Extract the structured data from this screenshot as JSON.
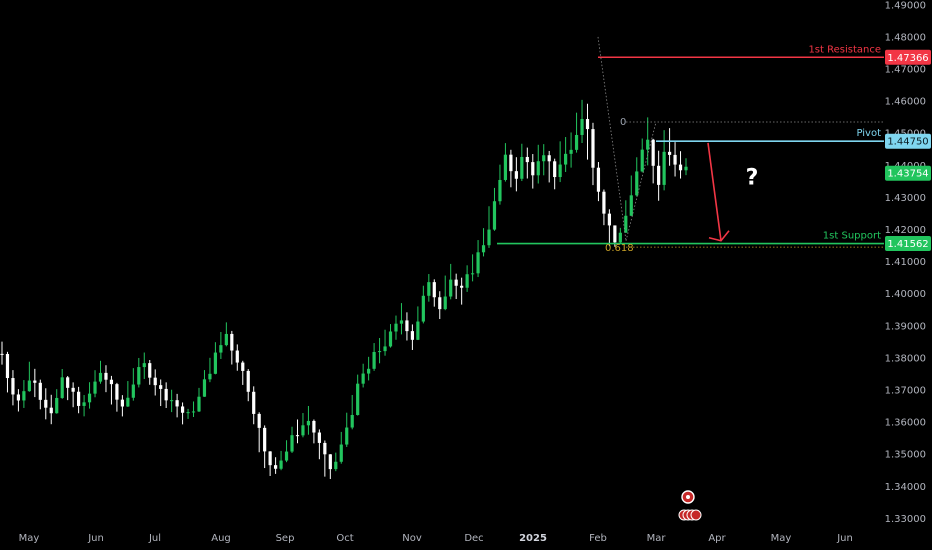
{
  "chart_data": {
    "type": "candlestick",
    "time_labels": [
      "May",
      "Jun",
      "Jul",
      "Aug",
      "Sep",
      "Oct",
      "Nov",
      "Dec",
      "2025",
      "Feb",
      "Mar",
      "Apr",
      "May",
      "Jun"
    ],
    "y_ticks": [
      "1.49000",
      "1.48000",
      "1.47000",
      "1.46000",
      "1.45000",
      "1.44000",
      "1.43000",
      "1.42000",
      "1.41000",
      "1.40000",
      "1.39000",
      "1.38000",
      "1.37000",
      "1.36000",
      "1.35000",
      "1.34000",
      "1.33000"
    ],
    "ylim": [
      1.327,
      1.4915
    ],
    "levels": [
      {
        "name": "1st Resistance",
        "price": 1.47366,
        "label": "1.47366",
        "color": "#f23645"
      },
      {
        "name": "Pivot",
        "price": 1.4475,
        "label": "1.44750",
        "color": "#7fd6f0"
      },
      {
        "name": "1st Support",
        "price": 1.41562,
        "label": "1.41562",
        "color": "#22c55e"
      }
    ],
    "last_price": {
      "price": 1.43754,
      "label": "1.43754",
      "color": "#22c55e"
    },
    "fib": {
      "level0_label": "0",
      "level618_label": "0.618",
      "level0_price": 1.4535,
      "level618_price": 1.4145
    },
    "annotation": "?",
    "price_path": [
      [
        1.3845,
        1.378
      ],
      [
        1.38,
        1.37
      ],
      [
        1.375,
        1.366
      ],
      [
        1.37,
        1.364
      ],
      [
        1.373,
        1.365
      ],
      [
        1.378,
        1.37
      ],
      [
        1.376,
        1.368
      ],
      [
        1.372,
        1.365
      ],
      [
        1.37,
        1.362
      ],
      [
        1.368,
        1.36
      ],
      [
        1.37,
        1.364
      ],
      [
        1.376,
        1.368
      ],
      [
        1.374,
        1.367
      ],
      [
        1.372,
        1.365
      ],
      [
        1.37,
        1.363
      ],
      [
        1.368,
        1.362
      ],
      [
        1.372,
        1.365
      ],
      [
        1.376,
        1.368
      ],
      [
        1.379,
        1.372
      ],
      [
        1.377,
        1.37
      ],
      [
        1.374,
        1.366
      ],
      [
        1.37,
        1.364
      ],
      [
        1.368,
        1.362
      ],
      [
        1.372,
        1.365
      ],
      [
        1.376,
        1.369
      ],
      [
        1.379,
        1.372
      ],
      [
        1.381,
        1.374
      ],
      [
        1.379,
        1.372
      ],
      [
        1.376,
        1.369
      ],
      [
        1.373,
        1.366
      ],
      [
        1.372,
        1.365
      ],
      [
        1.37,
        1.364
      ],
      [
        1.368,
        1.362
      ],
      [
        1.366,
        1.36
      ],
      [
        1.364,
        1.361
      ],
      [
        1.366,
        1.362
      ],
      [
        1.37,
        1.365
      ],
      [
        1.376,
        1.368
      ],
      [
        1.38,
        1.373
      ],
      [
        1.384,
        1.377
      ],
      [
        1.388,
        1.38
      ],
      [
        1.391,
        1.384
      ],
      [
        1.388,
        1.379
      ],
      [
        1.384,
        1.376
      ],
      [
        1.379,
        1.372
      ],
      [
        1.375,
        1.367
      ],
      [
        1.37,
        1.36
      ],
      [
        1.362,
        1.352
      ],
      [
        1.354,
        1.346
      ],
      [
        1.35,
        1.344
      ],
      [
        1.349,
        1.344
      ],
      [
        1.351,
        1.346
      ],
      [
        1.354,
        1.348
      ],
      [
        1.358,
        1.351
      ],
      [
        1.36,
        1.354
      ],
      [
        1.362,
        1.356
      ],
      [
        1.364,
        1.357
      ],
      [
        1.36,
        1.354
      ],
      [
        1.356,
        1.349
      ],
      [
        1.352,
        1.344
      ],
      [
        1.348,
        1.343
      ],
      [
        1.35,
        1.345
      ],
      [
        1.356,
        1.348
      ],
      [
        1.362,
        1.355
      ],
      [
        1.368,
        1.36
      ],
      [
        1.374,
        1.366
      ],
      [
        1.378,
        1.371
      ],
      [
        1.38,
        1.373
      ],
      [
        1.384,
        1.376
      ],
      [
        1.386,
        1.379
      ],
      [
        1.388,
        1.381
      ],
      [
        1.39,
        1.384
      ],
      [
        1.393,
        1.386
      ],
      [
        1.396,
        1.388
      ],
      [
        1.394,
        1.386
      ],
      [
        1.39,
        1.383
      ],
      [
        1.396,
        1.388
      ],
      [
        1.402,
        1.395
      ],
      [
        1.406,
        1.398
      ],
      [
        1.404,
        1.396
      ],
      [
        1.4,
        1.393
      ],
      [
        1.405,
        1.397
      ],
      [
        1.409,
        1.401
      ],
      [
        1.406,
        1.399
      ],
      [
        1.404,
        1.397
      ],
      [
        1.408,
        1.401
      ],
      [
        1.412,
        1.404
      ],
      [
        1.416,
        1.408
      ],
      [
        1.42,
        1.412
      ],
      [
        1.426,
        1.417
      ],
      [
        1.432,
        1.423
      ],
      [
        1.44,
        1.43
      ],
      [
        1.446,
        1.436
      ],
      [
        1.444,
        1.434
      ],
      [
        1.442,
        1.433
      ],
      [
        1.446,
        1.437
      ],
      [
        1.445,
        1.436
      ],
      [
        1.443,
        1.434
      ],
      [
        1.445,
        1.435
      ],
      [
        1.446,
        1.437
      ],
      [
        1.444,
        1.435
      ],
      [
        1.442,
        1.433
      ],
      [
        1.446,
        1.436
      ],
      [
        1.448,
        1.438
      ],
      [
        1.45,
        1.44
      ],
      [
        1.456,
        1.445
      ],
      [
        1.46,
        1.448
      ],
      [
        1.458,
        1.442
      ],
      [
        1.452,
        1.435
      ],
      [
        1.44,
        1.429
      ],
      [
        1.432,
        1.422
      ],
      [
        1.425,
        1.416
      ],
      [
        1.418,
        1.415
      ],
      [
        1.42,
        1.416
      ],
      [
        1.428,
        1.42
      ],
      [
        1.436,
        1.427
      ],
      [
        1.442,
        1.433
      ],
      [
        1.4475,
        1.438
      ],
      [
        1.4535,
        1.44
      ],
      [
        1.448,
        1.435
      ],
      [
        1.444,
        1.43
      ],
      [
        1.45,
        1.438
      ],
      [
        1.451,
        1.44
      ],
      [
        1.447,
        1.437
      ],
      [
        1.444,
        1.436
      ],
      [
        1.442,
        1.4375
      ]
    ]
  }
}
